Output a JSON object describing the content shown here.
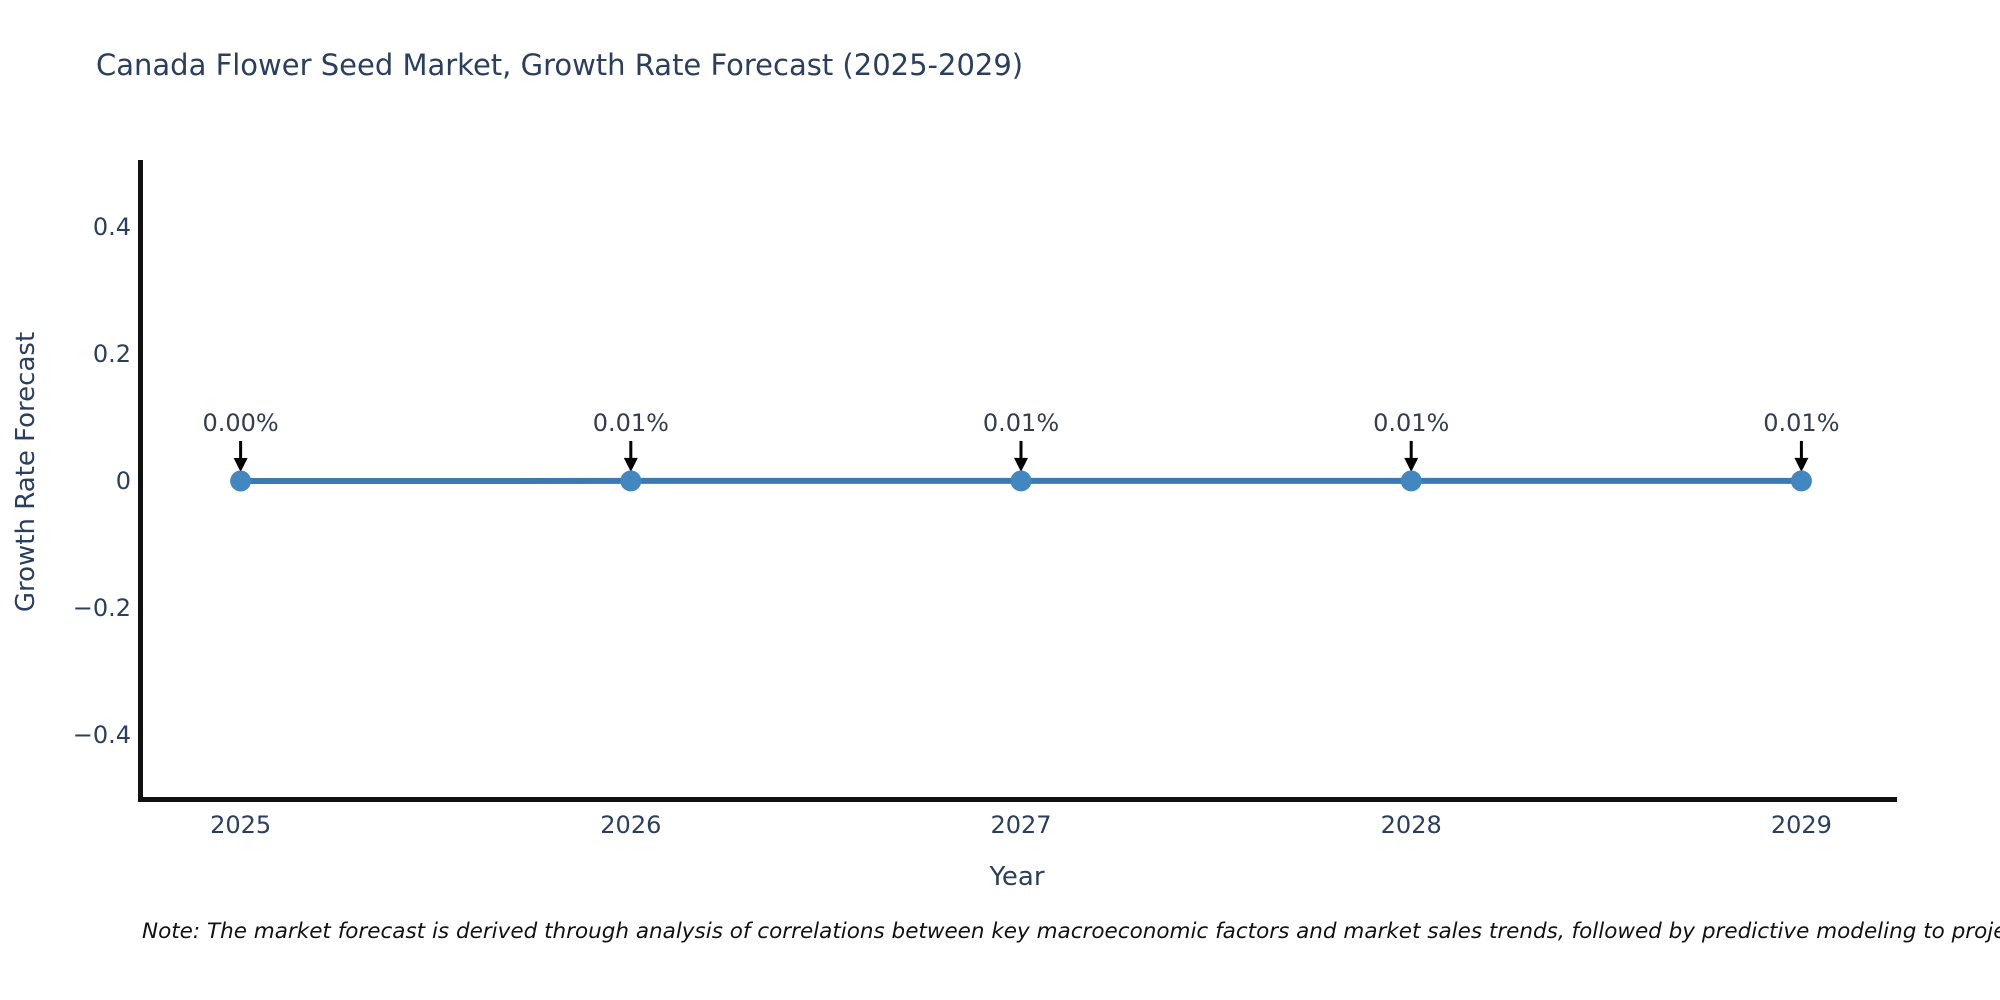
{
  "title": "Canada Flower Seed Market, Growth Rate Forecast (2025-2029)",
  "footnote": "Note: The market forecast is derived through analysis of correlations between key macroeconomic factors and market sales trends, followed by predictive modeling to project future sa",
  "chart_data": {
    "type": "line",
    "title": "Canada Flower Seed Market, Growth Rate Forecast (2025-2029)",
    "xlabel": "Year",
    "ylabel": "Growth Rate Forecast",
    "x": [
      2025,
      2026,
      2027,
      2028,
      2029
    ],
    "series": [
      {
        "name": "Growth Rate Forecast",
        "values": [
          0.0,
          0.0001,
          0.0001,
          0.0001,
          0.0001
        ],
        "point_labels": [
          "0.00%",
          "0.01%",
          "0.01%",
          "0.01%",
          "0.01%"
        ]
      }
    ],
    "xticks": [
      "2025",
      "2026",
      "2027",
      "2028",
      "2029"
    ],
    "ytick_values": [
      0.4,
      0.2,
      0,
      -0.2,
      -0.4
    ],
    "ytick_labels": [
      "0.4",
      "0.2",
      "0",
      "−0.2",
      "−0.4"
    ],
    "xlim": [
      2024.737,
      2029.245
    ],
    "ylim": [
      -0.5,
      0.5
    ],
    "grid": false,
    "legend": false,
    "annotation_arrows": true,
    "colors": {
      "line": "#3c79b0",
      "marker": "#4287c0",
      "arrow": "#000000",
      "axis_spine": "#111111",
      "text": "#2a3f5f",
      "annotation_text": "#333d4d",
      "note_text": "#111111",
      "background": "#ffffff"
    }
  }
}
